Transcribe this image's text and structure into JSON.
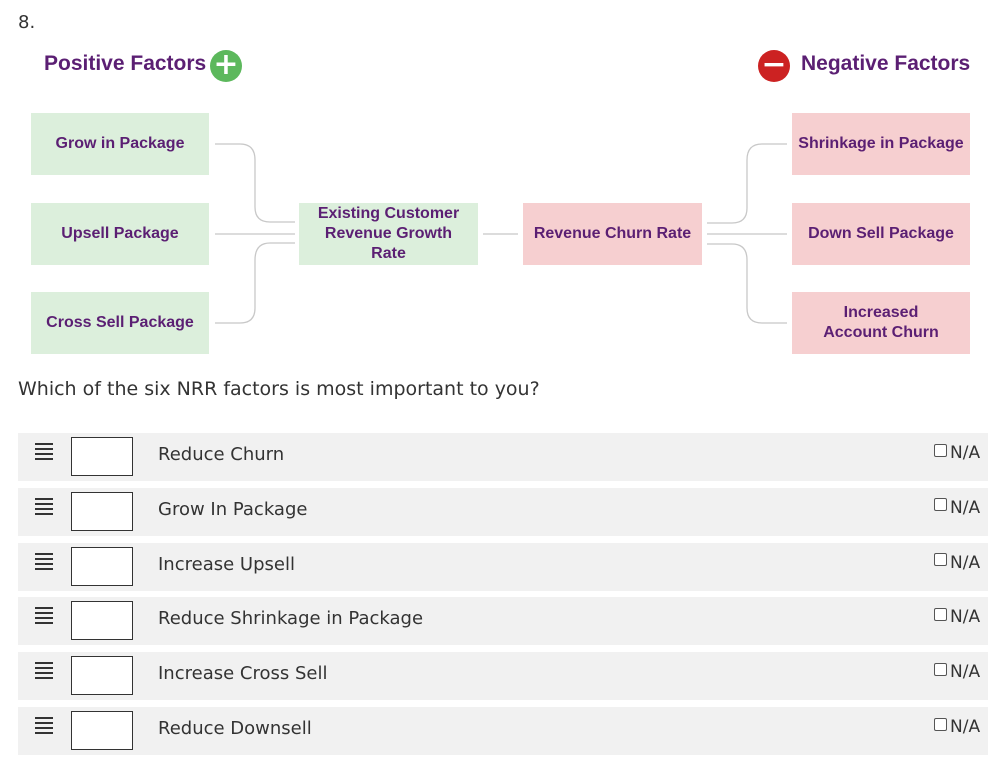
{
  "question_number": "8.",
  "diagram": {
    "positive_title": "Positive Factors",
    "negative_title": "Negative Factors",
    "positive_icon": "plus-circle-icon",
    "negative_icon": "minus-circle-icon",
    "colors": {
      "positive": "#5cb85c",
      "negative": "#cc2222",
      "text": "#5b1f73",
      "positive_box": "#dcefdc",
      "negative_box": "#f6cfd0"
    },
    "positive_factors": [
      "Grow in Package",
      "Upsell Package",
      "Cross Sell Package"
    ],
    "center_positive": "Existing Customer Revenue Growth Rate",
    "center_negative": "Revenue Churn Rate",
    "negative_factors": [
      "Shrinkage in Package",
      "Down Sell Package",
      "Increased Account Churn"
    ]
  },
  "question_text": "Which of the six NRR factors is most important to you?",
  "ranking": {
    "na_label": "N/A",
    "items": [
      {
        "label": "Reduce Churn",
        "rank": "",
        "na_checked": false
      },
      {
        "label": "Grow In Package",
        "rank": "",
        "na_checked": false
      },
      {
        "label": "Increase Upsell",
        "rank": "",
        "na_checked": false
      },
      {
        "label": "Reduce Shrinkage in Package",
        "rank": "",
        "na_checked": false
      },
      {
        "label": "Increase Cross Sell",
        "rank": "",
        "na_checked": false
      },
      {
        "label": "Reduce Downsell",
        "rank": "",
        "na_checked": false
      }
    ]
  }
}
